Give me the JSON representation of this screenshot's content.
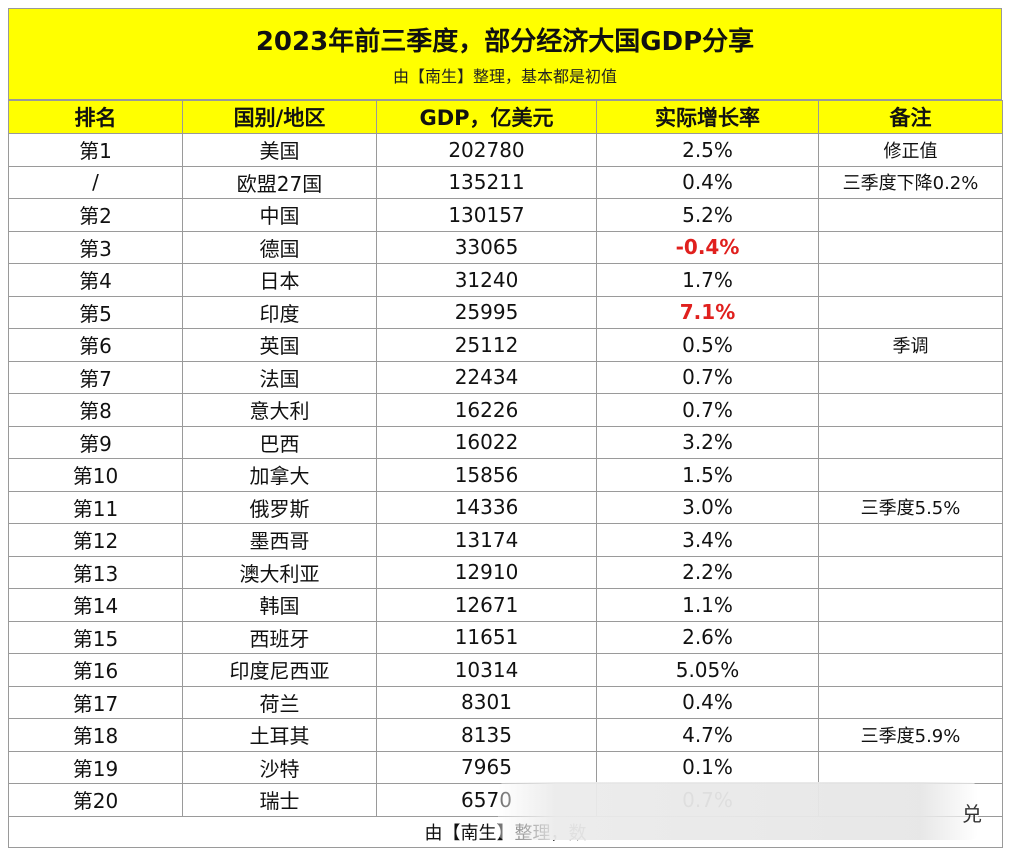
{
  "title": "2023年前三季度，部分经济大国GDP分享",
  "subtitle": "由【南生】整理，基本都是初值",
  "headers": [
    "排名",
    "国别/地区",
    "GDP，亿美元",
    "实际增长率",
    "备注"
  ],
  "rows": [
    {
      "rank": "第1",
      "country": "美国",
      "gdp": "202780",
      "growth": "2.5%",
      "note": "修正值"
    },
    {
      "rank": "/",
      "country": "欧盟27国",
      "gdp": "135211",
      "growth": "0.4%",
      "note": "三季度下降0.2%"
    },
    {
      "rank": "第2",
      "country": "中国",
      "gdp": "130157",
      "growth": "5.2%",
      "note": ""
    },
    {
      "rank": "第3",
      "country": "德国",
      "gdp": "33065",
      "growth": "-0.4%",
      "note": "",
      "highlight": true
    },
    {
      "rank": "第4",
      "country": "日本",
      "gdp": "31240",
      "growth": "1.7%",
      "note": ""
    },
    {
      "rank": "第5",
      "country": "印度",
      "gdp": "25995",
      "growth": "7.1%",
      "note": "",
      "highlight": true
    },
    {
      "rank": "第6",
      "country": "英国",
      "gdp": "25112",
      "growth": "0.5%",
      "note": "季调"
    },
    {
      "rank": "第7",
      "country": "法国",
      "gdp": "22434",
      "growth": "0.7%",
      "note": ""
    },
    {
      "rank": "第8",
      "country": "意大利",
      "gdp": "16226",
      "growth": "0.7%",
      "note": ""
    },
    {
      "rank": "第9",
      "country": "巴西",
      "gdp": "16022",
      "growth": "3.2%",
      "note": ""
    },
    {
      "rank": "第10",
      "country": "加拿大",
      "gdp": "15856",
      "growth": "1.5%",
      "note": ""
    },
    {
      "rank": "第11",
      "country": "俄罗斯",
      "gdp": "14336",
      "growth": "3.0%",
      "note": "三季度5.5%"
    },
    {
      "rank": "第12",
      "country": "墨西哥",
      "gdp": "13174",
      "growth": "3.4%",
      "note": ""
    },
    {
      "rank": "第13",
      "country": "澳大利亚",
      "gdp": "12910",
      "growth": "2.2%",
      "note": ""
    },
    {
      "rank": "第14",
      "country": "韩国",
      "gdp": "12671",
      "growth": "1.1%",
      "note": ""
    },
    {
      "rank": "第15",
      "country": "西班牙",
      "gdp": "11651",
      "growth": "2.6%",
      "note": ""
    },
    {
      "rank": "第16",
      "country": "印度尼西亚",
      "gdp": "10314",
      "growth": "5.05%",
      "note": ""
    },
    {
      "rank": "第17",
      "country": "荷兰",
      "gdp": "8301",
      "growth": "0.4%",
      "note": ""
    },
    {
      "rank": "第18",
      "country": "土耳其",
      "gdp": "8135",
      "growth": "4.7%",
      "note": "三季度5.9%"
    },
    {
      "rank": "第19",
      "country": "沙特",
      "gdp": "7965",
      "growth": "0.1%",
      "note": ""
    },
    {
      "rank": "第20",
      "country": "瑞士",
      "gdp": "6570",
      "growth": "0.7%",
      "note": ""
    }
  ],
  "footer": "由【南生】整理，数",
  "overlay_tail": "兑",
  "colors": {
    "header_bg": "#ffff00",
    "highlight": "#e0201e",
    "grid": "#9a9a9a"
  }
}
